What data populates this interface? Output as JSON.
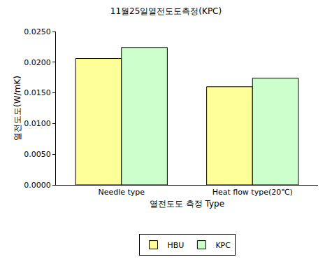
{
  "chart_data": {
    "type": "bar",
    "title": "11월25일열전도도측정(KPC)",
    "x_label": "열전도도 측정 Type",
    "y_label": "열전도도(W/mK)",
    "categories": [
      "Needle type",
      "Heat flow type(20℃)"
    ],
    "series": [
      {
        "name": "HBU",
        "color": "#FFFF99",
        "values": [
          0.0206,
          0.016
        ]
      },
      {
        "name": "KPC",
        "color": "#CCFFCC",
        "values": [
          0.0224,
          0.0174
        ]
      }
    ],
    "ylim": [
      0,
      0.025
    ],
    "yticks": [
      {
        "value": 0,
        "label": "0.0000"
      },
      {
        "value": 0.005,
        "label": "0.0050"
      },
      {
        "value": 0.01,
        "label": "0.0100"
      },
      {
        "value": 0.015,
        "label": "0.0150"
      },
      {
        "value": 0.02,
        "label": "0.0200"
      },
      {
        "value": 0.025,
        "label": "0.0250"
      }
    ],
    "grid": false,
    "legend": "bottom"
  }
}
